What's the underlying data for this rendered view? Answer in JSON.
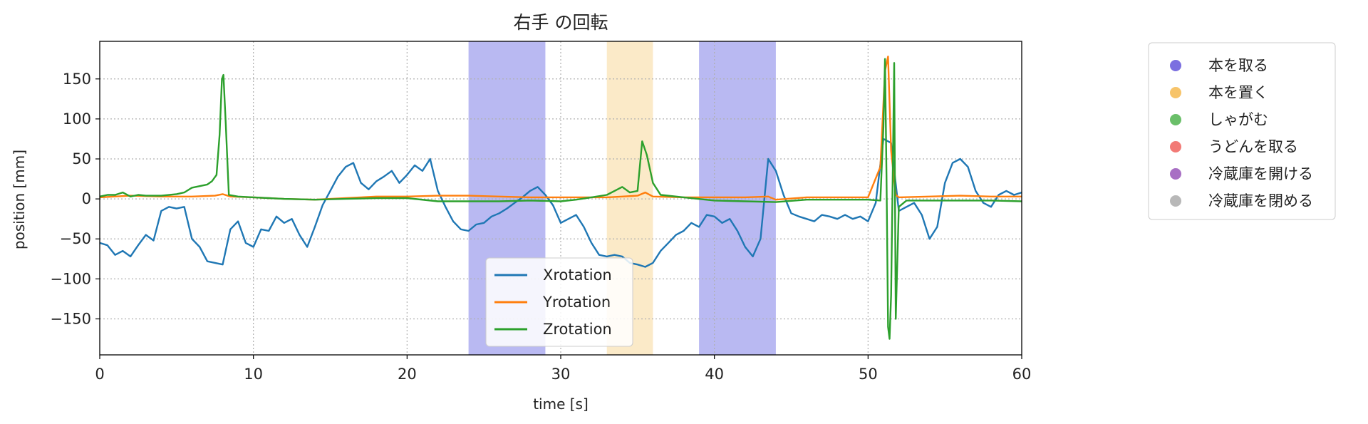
{
  "chart_data": {
    "type": "line",
    "title": "右手 の回転",
    "xlabel": "time [s]",
    "ylabel": "position [mm]",
    "xlim": [
      0,
      60
    ],
    "ylim": [
      -195,
      197
    ],
    "xticks": [
      0,
      10,
      20,
      30,
      40,
      50,
      60
    ],
    "yticks": [
      -150,
      -100,
      -50,
      0,
      50,
      100,
      150
    ],
    "grid": true,
    "legend_placement": "lower-center",
    "series": [
      {
        "name": "Xrotation",
        "color": "#1f77b4",
        "points": [
          [
            0,
            -55
          ],
          [
            0.5,
            -58
          ],
          [
            1,
            -70
          ],
          [
            1.5,
            -65
          ],
          [
            2,
            -72
          ],
          [
            2.5,
            -58
          ],
          [
            3,
            -45
          ],
          [
            3.5,
            -52
          ],
          [
            4,
            -15
          ],
          [
            4.5,
            -10
          ],
          [
            5,
            -12
          ],
          [
            5.5,
            -10
          ],
          [
            6,
            -50
          ],
          [
            6.5,
            -60
          ],
          [
            7,
            -78
          ],
          [
            7.5,
            -80
          ],
          [
            8,
            -82
          ],
          [
            8.5,
            -38
          ],
          [
            9,
            -28
          ],
          [
            9.5,
            -55
          ],
          [
            10,
            -60
          ],
          [
            10.5,
            -38
          ],
          [
            11,
            -40
          ],
          [
            11.5,
            -22
          ],
          [
            12,
            -30
          ],
          [
            12.5,
            -25
          ],
          [
            13,
            -45
          ],
          [
            13.5,
            -60
          ],
          [
            14,
            -35
          ],
          [
            14.5,
            -8
          ],
          [
            15,
            10
          ],
          [
            15.5,
            28
          ],
          [
            16,
            40
          ],
          [
            16.5,
            45
          ],
          [
            17,
            20
          ],
          [
            17.5,
            12
          ],
          [
            18,
            22
          ],
          [
            18.5,
            28
          ],
          [
            19,
            35
          ],
          [
            19.5,
            20
          ],
          [
            20,
            30
          ],
          [
            20.5,
            42
          ],
          [
            21,
            35
          ],
          [
            21.5,
            50
          ],
          [
            22,
            10
          ],
          [
            22.5,
            -10
          ],
          [
            23,
            -28
          ],
          [
            23.5,
            -38
          ],
          [
            24,
            -40
          ],
          [
            24.5,
            -32
          ],
          [
            25,
            -30
          ],
          [
            25.5,
            -22
          ],
          [
            26,
            -18
          ],
          [
            26.5,
            -12
          ],
          [
            27,
            -5
          ],
          [
            27.5,
            2
          ],
          [
            28,
            10
          ],
          [
            28.5,
            15
          ],
          [
            29,
            5
          ],
          [
            29.5,
            -8
          ],
          [
            30,
            -30
          ],
          [
            30.5,
            -25
          ],
          [
            31,
            -20
          ],
          [
            31.5,
            -35
          ],
          [
            32,
            -55
          ],
          [
            32.5,
            -70
          ],
          [
            33,
            -72
          ],
          [
            33.5,
            -70
          ],
          [
            34,
            -72
          ],
          [
            34.5,
            -80
          ],
          [
            35,
            -82
          ],
          [
            35.5,
            -85
          ],
          [
            36,
            -80
          ],
          [
            36.5,
            -65
          ],
          [
            37,
            -55
          ],
          [
            37.5,
            -45
          ],
          [
            38,
            -40
          ],
          [
            38.5,
            -30
          ],
          [
            39,
            -35
          ],
          [
            39.5,
            -20
          ],
          [
            40,
            -22
          ],
          [
            40.5,
            -30
          ],
          [
            41,
            -25
          ],
          [
            41.5,
            -40
          ],
          [
            42,
            -60
          ],
          [
            42.5,
            -72
          ],
          [
            43,
            -50
          ],
          [
            43.5,
            50
          ],
          [
            44,
            35
          ],
          [
            44.5,
            5
          ],
          [
            45,
            -18
          ],
          [
            45.5,
            -22
          ],
          [
            46,
            -25
          ],
          [
            46.5,
            -28
          ],
          [
            47,
            -20
          ],
          [
            47.5,
            -22
          ],
          [
            48,
            -25
          ],
          [
            48.5,
            -20
          ],
          [
            49,
            -25
          ],
          [
            49.5,
            -22
          ],
          [
            50,
            -28
          ],
          [
            50.5,
            -5
          ],
          [
            51,
            75
          ],
          [
            51.5,
            70
          ],
          [
            52,
            -15
          ],
          [
            52.5,
            -10
          ],
          [
            53,
            -5
          ],
          [
            53.5,
            -20
          ],
          [
            54,
            -50
          ],
          [
            54.5,
            -35
          ],
          [
            55,
            20
          ],
          [
            55.5,
            45
          ],
          [
            56,
            50
          ],
          [
            56.5,
            40
          ],
          [
            57,
            10
          ],
          [
            57.5,
            -5
          ],
          [
            58,
            -10
          ],
          [
            58.5,
            5
          ],
          [
            59,
            10
          ],
          [
            59.5,
            5
          ],
          [
            60,
            8
          ]
        ]
      },
      {
        "name": "Yrotation",
        "color": "#ff7f0e",
        "points": [
          [
            0,
            2
          ],
          [
            2,
            4
          ],
          [
            4,
            3
          ],
          [
            6,
            3
          ],
          [
            7.5,
            4
          ],
          [
            8,
            6
          ],
          [
            8.5,
            3
          ],
          [
            10,
            2
          ],
          [
            12,
            0
          ],
          [
            14,
            -1
          ],
          [
            16,
            1
          ],
          [
            18,
            3
          ],
          [
            20,
            3
          ],
          [
            22,
            4
          ],
          [
            24,
            4
          ],
          [
            26,
            3
          ],
          [
            28,
            2
          ],
          [
            30,
            2
          ],
          [
            32,
            2
          ],
          [
            33,
            2
          ],
          [
            34,
            3
          ],
          [
            35,
            4
          ],
          [
            35.5,
            8
          ],
          [
            36,
            3
          ],
          [
            38,
            2
          ],
          [
            40,
            2
          ],
          [
            42,
            2
          ],
          [
            43.5,
            3
          ],
          [
            44,
            -1
          ],
          [
            46,
            2
          ],
          [
            48,
            2
          ],
          [
            50,
            2
          ],
          [
            50.8,
            40
          ],
          [
            51.1,
            160
          ],
          [
            51.3,
            178
          ],
          [
            51.5,
            60
          ],
          [
            51.8,
            5
          ],
          [
            52,
            2
          ],
          [
            54,
            3
          ],
          [
            56,
            4
          ],
          [
            58,
            3
          ],
          [
            60,
            3
          ]
        ]
      },
      {
        "name": "Zrotation",
        "color": "#2ca02c",
        "points": [
          [
            0,
            3
          ],
          [
            0.5,
            5
          ],
          [
            1,
            5
          ],
          [
            1.5,
            8
          ],
          [
            2,
            3
          ],
          [
            2.5,
            5
          ],
          [
            3,
            4
          ],
          [
            4,
            4
          ],
          [
            5,
            6
          ],
          [
            5.5,
            8
          ],
          [
            6,
            14
          ],
          [
            6.5,
            16
          ],
          [
            7,
            18
          ],
          [
            7.3,
            22
          ],
          [
            7.6,
            30
          ],
          [
            7.8,
            80
          ],
          [
            7.95,
            150
          ],
          [
            8.05,
            155
          ],
          [
            8.2,
            95
          ],
          [
            8.4,
            5
          ],
          [
            9,
            3
          ],
          [
            10,
            2
          ],
          [
            12,
            0
          ],
          [
            14,
            -1
          ],
          [
            16,
            0
          ],
          [
            18,
            1
          ],
          [
            20,
            1
          ],
          [
            22,
            -3
          ],
          [
            24,
            -3
          ],
          [
            26,
            -3
          ],
          [
            28,
            -2
          ],
          [
            30,
            -3
          ],
          [
            31,
            -1
          ],
          [
            32,
            2
          ],
          [
            33,
            5
          ],
          [
            33.5,
            10
          ],
          [
            34,
            15
          ],
          [
            34.5,
            8
          ],
          [
            35,
            10
          ],
          [
            35.3,
            72
          ],
          [
            35.6,
            55
          ],
          [
            36,
            20
          ],
          [
            36.5,
            5
          ],
          [
            38,
            2
          ],
          [
            40,
            -2
          ],
          [
            42,
            -3
          ],
          [
            44,
            -4
          ],
          [
            46,
            -1
          ],
          [
            48,
            -1
          ],
          [
            50,
            -1
          ],
          [
            50.8,
            -2
          ],
          [
            51.0,
            90
          ],
          [
            51.1,
            175
          ],
          [
            51.2,
            30
          ],
          [
            51.3,
            -160
          ],
          [
            51.4,
            -175
          ],
          [
            51.5,
            -120
          ],
          [
            51.6,
            20
          ],
          [
            51.7,
            170
          ],
          [
            51.8,
            -150
          ],
          [
            52,
            -10
          ],
          [
            52.5,
            -2
          ],
          [
            54,
            -2
          ],
          [
            56,
            -2
          ],
          [
            58,
            -2
          ],
          [
            60,
            -3
          ]
        ]
      }
    ],
    "spans": [
      {
        "start": 24.0,
        "end": 29.0,
        "color": "#8080e8"
      },
      {
        "start": 33.0,
        "end": 36.0,
        "color": "#f8d89a"
      },
      {
        "start": 39.0,
        "end": 44.0,
        "color": "#8080e8"
      }
    ],
    "activity_legend": [
      {
        "label": "本を取る",
        "color": "#7b6fe0"
      },
      {
        "label": "本を置く",
        "color": "#f7c46a"
      },
      {
        "label": "しゃがむ",
        "color": "#6abf69"
      },
      {
        "label": "うどんを取る",
        "color": "#f27a76"
      },
      {
        "label": "冷蔵庫を開ける",
        "color": "#a86fc4"
      },
      {
        "label": "冷蔵庫を閉める",
        "color": "#b8b8b8"
      }
    ]
  }
}
